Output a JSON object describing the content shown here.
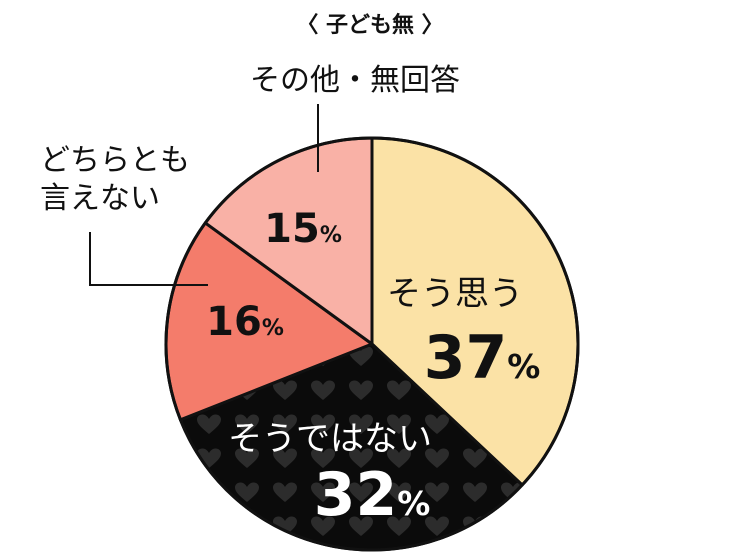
{
  "chart_data": {
    "type": "pie",
    "title": "〈 子ども無 〉",
    "unit": "%",
    "slices": [
      {
        "label": "そう思う",
        "value": 37,
        "color": "#fbe2a6"
      },
      {
        "label": "そうではない",
        "value": 32,
        "color": "#0b0b0b",
        "pattern": "hearts"
      },
      {
        "label": "どちらとも言えない",
        "label_lines": [
          "どちらとも",
          "言えない"
        ],
        "value": 16,
        "color": "#f47c6b"
      },
      {
        "label": "その他・無回答",
        "value": 15,
        "color": "#f9b1a6"
      }
    ]
  }
}
